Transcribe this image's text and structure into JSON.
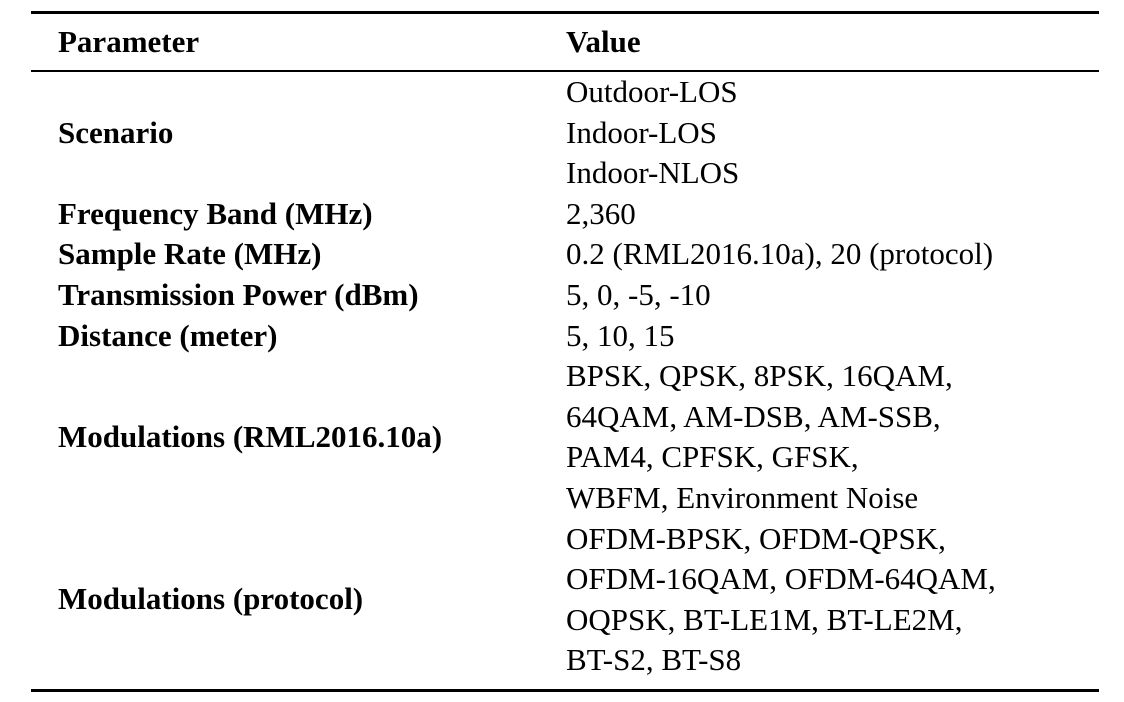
{
  "table": {
    "header": {
      "parameter": "Parameter",
      "value": "Value"
    },
    "rows": [
      {
        "parameter": "Scenario",
        "values": [
          "Outdoor-LOS",
          "Indoor-LOS",
          "Indoor-NLOS"
        ]
      },
      {
        "parameter": "Frequency Band (MHz)",
        "values": [
          "2,360"
        ]
      },
      {
        "parameter": "Sample Rate (MHz)",
        "values": [
          "0.2 (RML2016.10a), 20 (protocol)"
        ]
      },
      {
        "parameter": "Transmission Power (dBm)",
        "values": [
          "5, 0, -5, -10"
        ]
      },
      {
        "parameter": "Distance (meter)",
        "values": [
          "5, 10, 15"
        ]
      },
      {
        "parameter": "Modulations (RML2016.10a)",
        "values": [
          "BPSK, QPSK, 8PSK, 16QAM,",
          "64QAM, AM-DSB, AM-SSB,",
          "PAM4, CPFSK, GFSK,",
          "WBFM, Environment Noise"
        ]
      },
      {
        "parameter": "Modulations (protocol)",
        "values": [
          "OFDM-BPSK, OFDM-QPSK,",
          "OFDM-16QAM, OFDM-64QAM,",
          "OQPSK, BT-LE1M, BT-LE2M,",
          "BT-S2, BT-S8"
        ]
      }
    ]
  }
}
